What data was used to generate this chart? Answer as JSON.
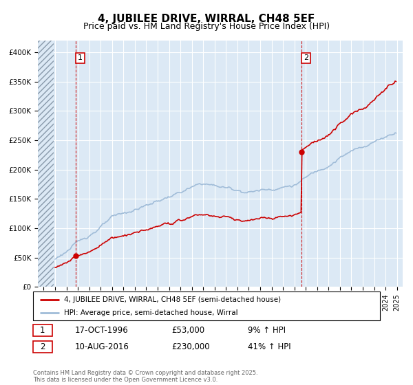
{
  "title": "4, JUBILEE DRIVE, WIRRAL, CH48 5EF",
  "subtitle": "Price paid vs. HM Land Registry's House Price Index (HPI)",
  "ylabel_ticks": [
    0,
    50000,
    100000,
    150000,
    200000,
    250000,
    300000,
    350000,
    400000
  ],
  "ylabel_labels": [
    "£0",
    "£50K",
    "£100K",
    "£150K",
    "£200K",
    "£250K",
    "£300K",
    "£350K",
    "£400K"
  ],
  "ylim": [
    0,
    420000
  ],
  "xlim_start": 1993.5,
  "xlim_end": 2025.5,
  "sale1_x": 1996.79,
  "sale1_y": 53000,
  "sale2_x": 2016.61,
  "sale2_y": 230000,
  "hpi_line_color": "#a0bcd8",
  "price_line_color": "#cc0000",
  "sale_dot_color": "#cc0000",
  "annotation_box_color": "#cc0000",
  "plot_bg_color": "#dce9f5",
  "legend_label_red": "4, JUBILEE DRIVE, WIRRAL, CH48 5EF (semi-detached house)",
  "legend_label_blue": "HPI: Average price, semi-detached house, Wirral",
  "footnote": "Contains HM Land Registry data © Crown copyright and database right 2025.\nThis data is licensed under the Open Government Licence v3.0.",
  "annot1_label": "1",
  "annot1_date": "17-OCT-1996",
  "annot1_price": "£53,000",
  "annot1_hpi": "9% ↑ HPI",
  "annot2_label": "2",
  "annot2_date": "10-AUG-2016",
  "annot2_price": "£230,000",
  "annot2_hpi": "41% ↑ HPI",
  "grid_color": "#ffffff",
  "title_fontsize": 11,
  "subtitle_fontsize": 9
}
